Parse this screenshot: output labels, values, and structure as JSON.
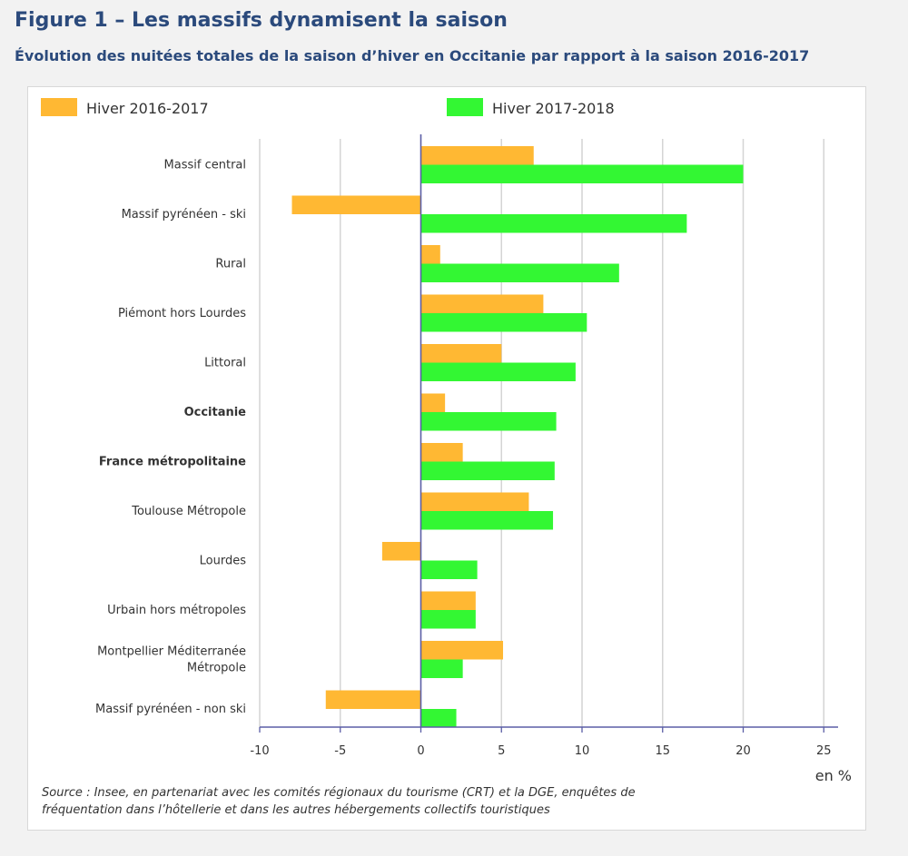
{
  "header": {
    "title": "Figure 1 – Les massifs dynamisent la saison",
    "subtitle": "Évolution des nuitées totales de la saison d’hiver en Occitanie par rapport à la saison 2016-2017"
  },
  "source": "Source : Insee, en partenariat avec les comités régionaux du tourisme (CRT) et la DGE, enquêtes de fréquentation dans l’hôtellerie et dans les autres hébergements collectifs touristiques",
  "chart_data": {
    "type": "bar",
    "orientation": "horizontal",
    "categories": [
      "Massif central",
      "Massif pyrénéen - ski",
      "Rural",
      "Piémont hors Lourdes",
      "Littoral",
      "Occitanie",
      "France métropolitaine",
      "Toulouse Métropole",
      "Lourdes",
      "Urbain hors métropoles",
      "Montpellier Méditerranée Métropole",
      "Massif pyrénéen - non ski"
    ],
    "bold_categories": [
      "Occitanie",
      "France métropolitaine"
    ],
    "series": [
      {
        "name": "Hiver 2016-2017",
        "color": "#ffb833",
        "values": [
          7.0,
          -8.0,
          1.2,
          7.6,
          5.0,
          1.5,
          2.6,
          6.7,
          -2.4,
          3.4,
          5.1,
          -5.9
        ]
      },
      {
        "name": "Hiver 2017-2018",
        "color": "#33f733",
        "values": [
          20.0,
          16.5,
          12.3,
          10.3,
          9.6,
          8.4,
          8.3,
          8.2,
          3.5,
          3.4,
          2.6,
          2.2
        ]
      }
    ],
    "xlim": [
      -10,
      26
    ],
    "xticks": [
      -10,
      -5,
      0,
      5,
      10,
      15,
      20,
      25
    ],
    "xunit": "en %",
    "grid": "vertical",
    "legend_position": "top"
  }
}
